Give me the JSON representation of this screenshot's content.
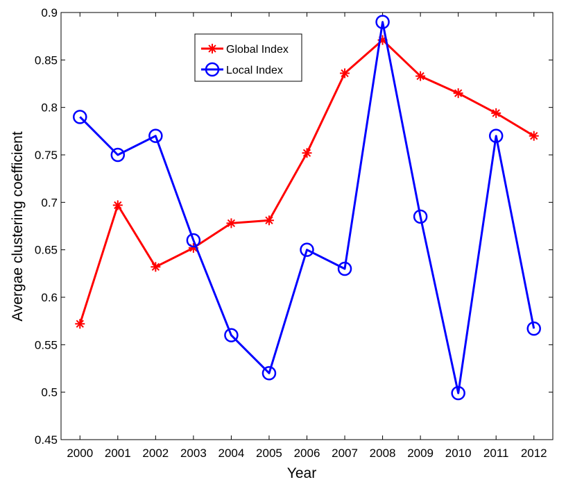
{
  "chart_data": {
    "type": "line",
    "xlabel": "Year",
    "ylabel": "Avergae clustering coefficient",
    "ylim": [
      0.45,
      0.9
    ],
    "yticks": [
      "0.45",
      "0.5",
      "0.55",
      "0.6",
      "0.65",
      "0.7",
      "0.75",
      "0.8",
      "0.85",
      "0.9"
    ],
    "categories": [
      "2000",
      "2001",
      "2002",
      "2003",
      "2004",
      "2005",
      "2006",
      "2007",
      "2008",
      "2009",
      "2010",
      "2011",
      "2012"
    ],
    "legend_position": "top-center",
    "grid": false,
    "series": [
      {
        "name": "Global Index",
        "color": "#ff0000",
        "marker": "asterisk",
        "values": [
          0.572,
          0.697,
          0.632,
          0.652,
          0.678,
          0.681,
          0.752,
          0.836,
          0.871,
          0.833,
          0.815,
          0.794,
          0.77
        ]
      },
      {
        "name": "Local Index",
        "color": "#0000ff",
        "marker": "circle",
        "values": [
          0.79,
          0.75,
          0.77,
          0.66,
          0.56,
          0.52,
          0.65,
          0.63,
          0.89,
          0.685,
          0.499,
          0.77,
          0.567
        ]
      }
    ]
  }
}
